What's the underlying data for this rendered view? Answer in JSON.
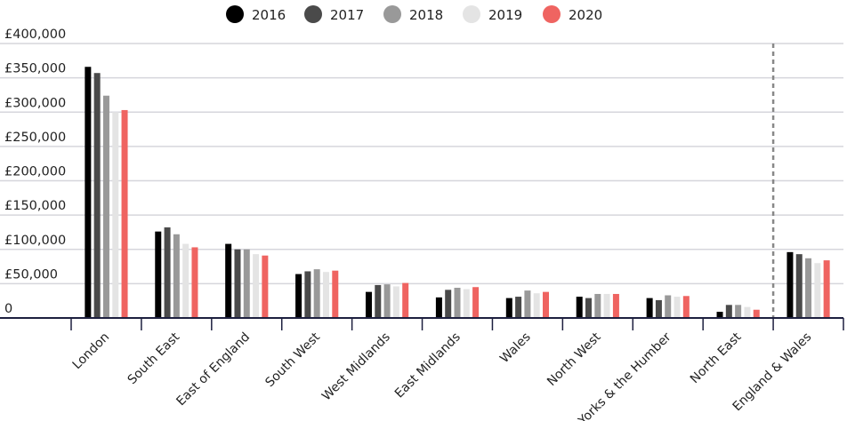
{
  "chart_data": {
    "type": "bar",
    "categories": [
      "London",
      "South East",
      "East of England",
      "South West",
      "West Midlands",
      "East Midlands",
      "Wales",
      "North West",
      "Yorks & the Humber",
      "North East",
      "England & Wales"
    ],
    "series": [
      {
        "name": "2016",
        "color": "#000000",
        "values": [
          366000,
          126000,
          108000,
          64000,
          38000,
          30000,
          29000,
          31000,
          29000,
          9000,
          96000
        ]
      },
      {
        "name": "2017",
        "color": "#4a4a4a",
        "values": [
          357000,
          132000,
          100000,
          68000,
          48000,
          41000,
          31000,
          29000,
          26000,
          19000,
          93000
        ]
      },
      {
        "name": "2018",
        "color": "#999999",
        "values": [
          324000,
          122000,
          100000,
          71000,
          49000,
          44000,
          40000,
          35000,
          33000,
          19000,
          87000
        ]
      },
      {
        "name": "2019",
        "color": "#e4e4e4",
        "values": [
          300000,
          108000,
          93000,
          67000,
          46000,
          42000,
          36000,
          35000,
          31000,
          16000,
          80000
        ]
      },
      {
        "name": "2020",
        "color": "#ef6461",
        "values": [
          303000,
          103000,
          91000,
          69000,
          51000,
          45000,
          38000,
          35000,
          32000,
          12000,
          84000
        ]
      }
    ],
    "ylim": [
      0,
      400000
    ],
    "yticks": [
      0,
      50000,
      100000,
      150000,
      200000,
      250000,
      300000,
      350000,
      400000
    ],
    "ytick_labels": [
      "0",
      "£50,000",
      "£100,000",
      "£150,000",
      "£200,000",
      "£250,000",
      "£300,000",
      "£350,000",
      "£400,000"
    ],
    "grid": true,
    "legend": "top-center",
    "separator_before": "England & Wales"
  }
}
